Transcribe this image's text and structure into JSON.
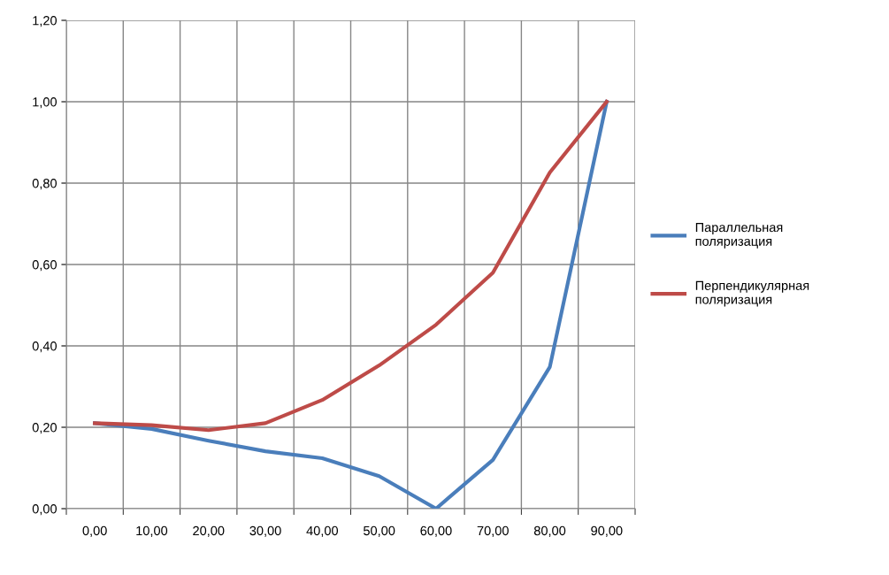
{
  "chart_data": {
    "type": "line",
    "categories": [
      "0,00",
      "10,00",
      "20,00",
      "30,00",
      "40,00",
      "50,00",
      "60,00",
      "70,00",
      "80,00",
      "90,00"
    ],
    "series": [
      {
        "name": "Параллельная поляризация",
        "color": "#4a7ebb",
        "values": [
          0.21,
          0.196,
          0.167,
          0.141,
          0.124,
          0.08,
          0.0,
          0.12,
          0.348,
          1.0
        ]
      },
      {
        "name": "Перпендикулярная поляризация",
        "color": "#be4b48",
        "values": [
          0.21,
          0.205,
          0.193,
          0.21,
          0.267,
          0.352,
          0.452,
          0.58,
          0.826,
          1.0
        ]
      }
    ],
    "ylim": [
      0,
      1.2
    ],
    "yticks": [
      {
        "value": 0,
        "label": "0,00"
      },
      {
        "value": 0.2,
        "label": "0,20"
      },
      {
        "value": 0.4,
        "label": "0,40"
      },
      {
        "value": 0.6,
        "label": "0,60"
      },
      {
        "value": 0.8,
        "label": "0,80"
      },
      {
        "value": 1.0,
        "label": "1,00"
      },
      {
        "value": 1.2,
        "label": "1,20"
      }
    ],
    "grid": true,
    "legend": "right",
    "marker": "none",
    "line_style": "solid"
  }
}
